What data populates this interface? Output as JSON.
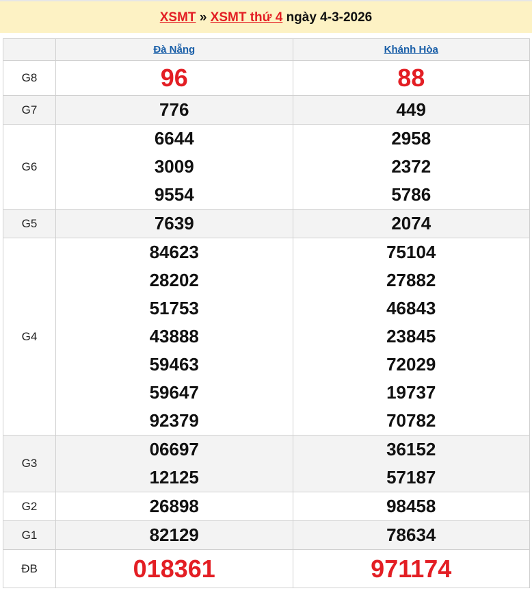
{
  "header": {
    "link1": "XSMT",
    "sep": "»",
    "link2": "XSMT thứ 4",
    "date_text": "ngày 4-3-2026"
  },
  "provinces": [
    "Đà Nẵng",
    "Khánh Hòa"
  ],
  "prizes": [
    {
      "label": "G8",
      "style": "big",
      "values": [
        [
          "96"
        ],
        [
          "88"
        ]
      ]
    },
    {
      "label": "G7",
      "values": [
        [
          "776"
        ],
        [
          "449"
        ]
      ]
    },
    {
      "label": "G6",
      "values": [
        [
          "6644",
          "3009",
          "9554"
        ],
        [
          "2958",
          "2372",
          "5786"
        ]
      ]
    },
    {
      "label": "G5",
      "values": [
        [
          "7639"
        ],
        [
          "2074"
        ]
      ]
    },
    {
      "label": "G4",
      "values": [
        [
          "84623",
          "28202",
          "51753",
          "43888",
          "59463",
          "59647",
          "92379"
        ],
        [
          "75104",
          "27882",
          "46843",
          "23845",
          "72029",
          "19737",
          "70782"
        ]
      ]
    },
    {
      "label": "G3",
      "values": [
        [
          "06697",
          "12125"
        ],
        [
          "36152",
          "57187"
        ]
      ]
    },
    {
      "label": "G2",
      "values": [
        [
          "26898"
        ],
        [
          "98458"
        ]
      ]
    },
    {
      "label": "G1",
      "values": [
        [
          "82129"
        ],
        [
          "78634"
        ]
      ]
    },
    {
      "label": "ĐB",
      "style": "db",
      "values": [
        [
          "018361"
        ],
        [
          "971174"
        ]
      ]
    }
  ],
  "colors": {
    "accent_red": "#e31e24",
    "link_blue": "#1a5fa8",
    "header_bg": "#fdf2c4",
    "row_alt": "#f3f3f3"
  }
}
